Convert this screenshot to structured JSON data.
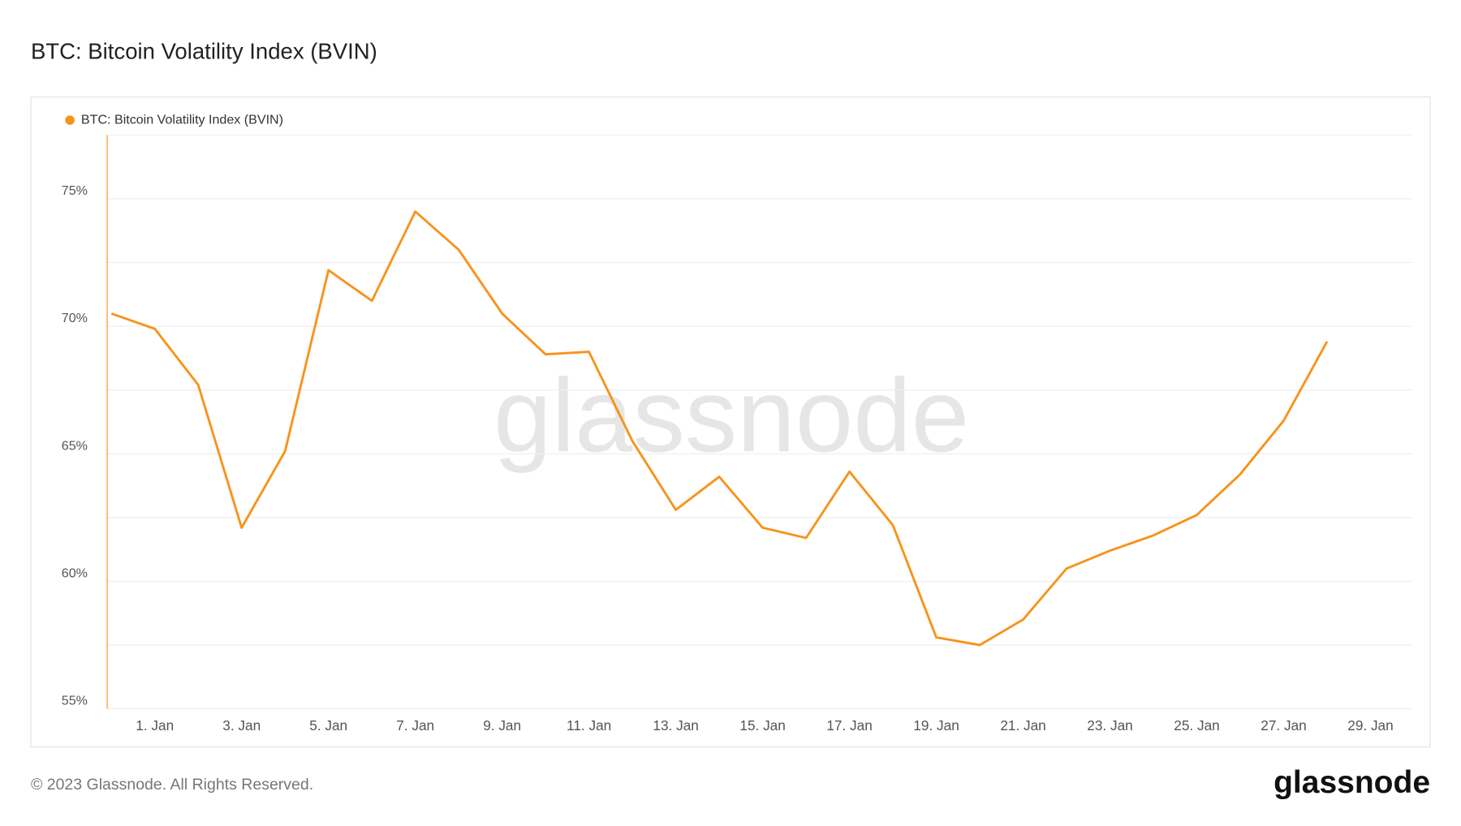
{
  "chart_data": {
    "type": "line",
    "title": "BTC: Bitcoin Volatility Index (BVIN)",
    "categories": [
      null,
      "1. Jan",
      null,
      "3. Jan",
      null,
      "5. Jan",
      null,
      "7. Jan",
      null,
      "9. Jan",
      null,
      "11. Jan",
      null,
      "13. Jan",
      null,
      "15. Jan",
      null,
      "17. Jan",
      null,
      "19. Jan",
      null,
      "21. Jan",
      null,
      "23. Jan",
      null,
      "25. Jan",
      null,
      "27. Jan",
      null,
      "29. Jan"
    ],
    "series": [
      {
        "name": "BTC: Bitcoin Volatility Index (BVIN)",
        "color": "#f7931a",
        "values": [
          70.5,
          69.9,
          67.7,
          62.1,
          65.1,
          72.2,
          71.0,
          74.5,
          73.0,
          70.5,
          68.9,
          69.0,
          65.5,
          62.8,
          64.1,
          62.1,
          61.7,
          64.3,
          62.2,
          57.8,
          57.5,
          58.5,
          60.5,
          61.2,
          61.8,
          62.6,
          64.2,
          66.3,
          69.4,
          null
        ]
      }
    ],
    "ylim": [
      55,
      77.5
    ],
    "yticks": [
      {
        "value": 55,
        "label": "55%"
      },
      {
        "value": 60,
        "label": "60%"
      },
      {
        "value": 65,
        "label": "65%"
      },
      {
        "value": 70,
        "label": "70%"
      },
      {
        "value": 75,
        "label": "75%"
      }
    ],
    "minor_grid": [
      57.5,
      62.5,
      67.5,
      72.5,
      77.5
    ],
    "grid": true,
    "legend": "top-left"
  },
  "watermark": "glassnode",
  "footer": "© 2023 Glassnode. All Rights Reserved.",
  "logo": "glassnode"
}
